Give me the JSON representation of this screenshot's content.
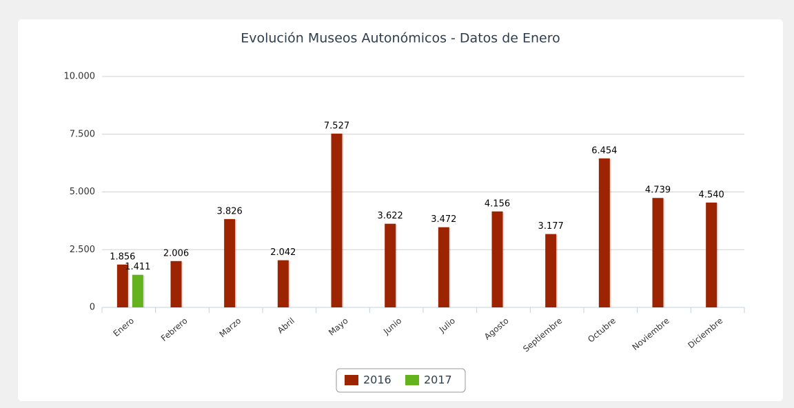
{
  "chart_data": {
    "type": "bar",
    "title": "Evolución Museos Autonómicos - Datos de Enero",
    "categories": [
      "Enero",
      "Febrero",
      "Marzo",
      "Abril",
      "Mayo",
      "Junio",
      "Julio",
      "Agosto",
      "Septiembre",
      "Octubre",
      "Noviembre",
      "Diciembre"
    ],
    "series": [
      {
        "name": "2016",
        "color": "#9c2400",
        "values": [
          1856,
          2006,
          3826,
          2042,
          7527,
          3622,
          3472,
          4156,
          3177,
          6454,
          4739,
          4540
        ],
        "value_labels": [
          "1.856",
          "2.006",
          "3.826",
          "2.042",
          "7.527",
          "3.622",
          "3.472",
          "4.156",
          "3.177",
          "6.454",
          "4.739",
          "4.540"
        ]
      },
      {
        "name": "2017",
        "color": "#64b21e",
        "values": [
          1411,
          null,
          null,
          null,
          null,
          null,
          null,
          null,
          null,
          null,
          null,
          null
        ],
        "value_labels": [
          "1.411",
          null,
          null,
          null,
          null,
          null,
          null,
          null,
          null,
          null,
          null,
          null
        ]
      }
    ],
    "ylim": [
      0,
      10000
    ],
    "yticks": [
      {
        "value": 0,
        "label": "0"
      },
      {
        "value": 2500,
        "label": "2.500"
      },
      {
        "value": 5000,
        "label": "5.000"
      },
      {
        "value": 7500,
        "label": "7.500"
      },
      {
        "value": 10000,
        "label": "10.000"
      }
    ],
    "grid": true
  }
}
